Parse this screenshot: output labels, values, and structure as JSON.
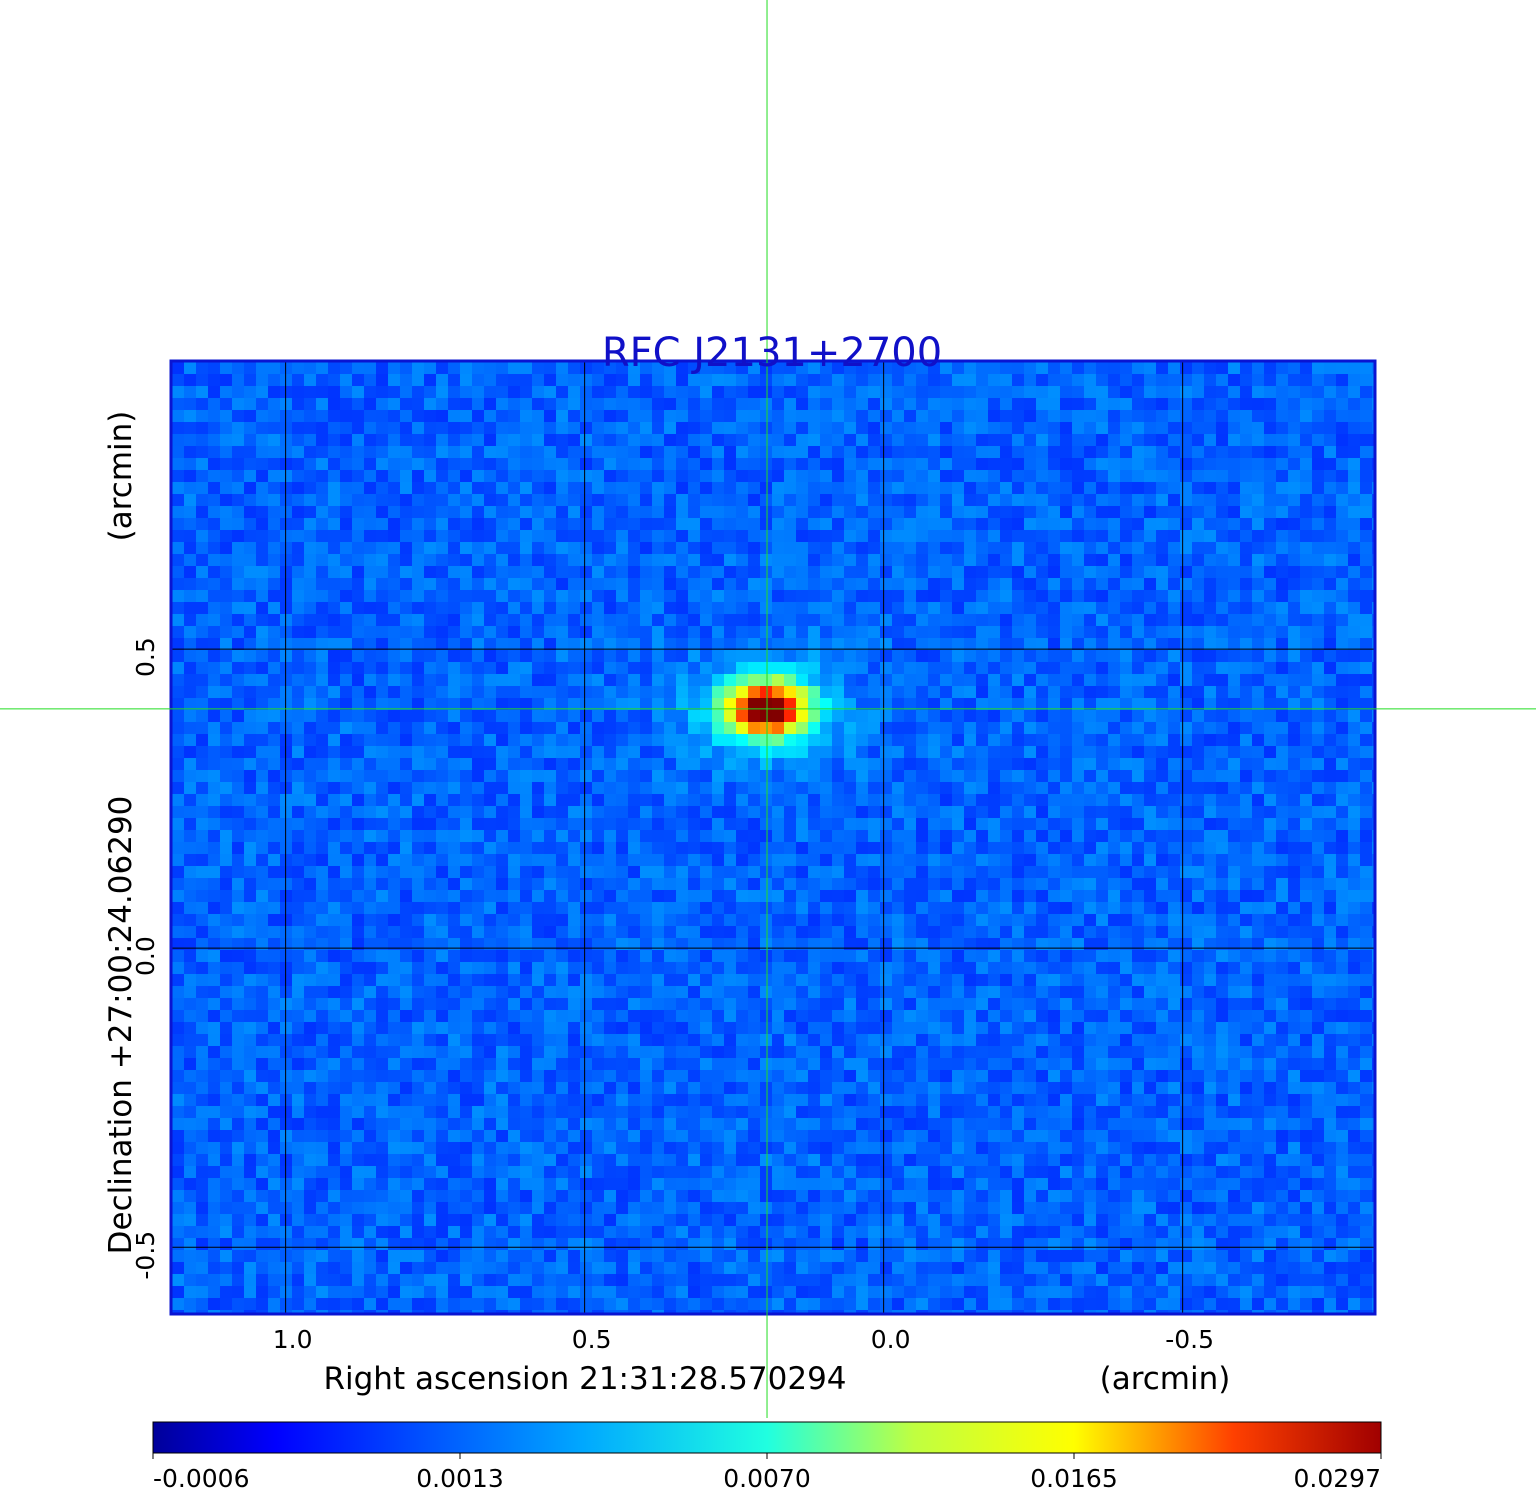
{
  "chart_data": {
    "type": "heatmap",
    "title": "RFC J2131+2700",
    "title_color": "#1010c8",
    "frame_color": "#0a14d2",
    "grid_color": "#000000",
    "crosshair_color": "#22dd22",
    "colormap": "jet",
    "x_axis": {
      "label": "Right ascension  21:31:28.570294",
      "unit": "(arcmin)",
      "ticks": [
        "1.0",
        "0.5",
        "0.0",
        "-0.5"
      ],
      "tick_values": [
        1.0,
        0.5,
        0.0,
        -0.5
      ],
      "range": [
        1.19,
        -0.82
      ],
      "reversed": true
    },
    "y_axis": {
      "label": "Declination  +27:00:24.06290",
      "unit": "(arcmin)",
      "ticks": [
        "0.5",
        "0.0",
        "-0.5"
      ],
      "tick_values": [
        0.5,
        0.0,
        -0.5
      ],
      "range": [
        -0.61,
        0.98
      ]
    },
    "grid": true,
    "source": {
      "x": 0.195,
      "y": 0.4,
      "peak": 0.0297,
      "label": "bright compact source near crosshair"
    },
    "crosshair": {
      "x": 0.195,
      "y": 0.4
    },
    "colorbar": {
      "orientation": "horizontal",
      "position": "bottom",
      "ticks": [
        "-0.0006",
        "0.0013",
        "0.0070",
        "0.0165",
        "0.0297"
      ],
      "tick_values": [
        -0.0006,
        0.0013,
        0.007,
        0.0165,
        0.0297
      ],
      "scale": "nonlinear (sqrt-like)"
    }
  }
}
